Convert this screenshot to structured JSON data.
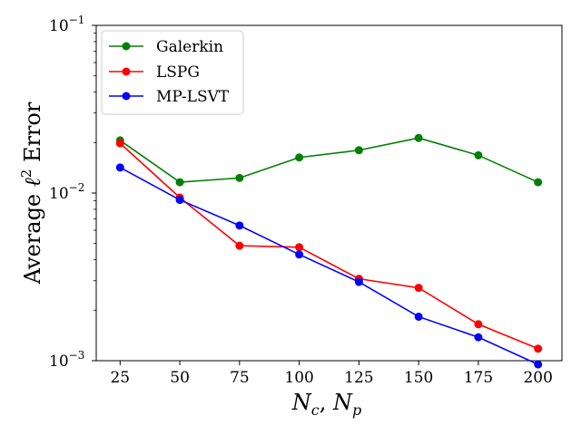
{
  "chart_data": {
    "type": "line",
    "title": "",
    "xlabel": "N_c, N_p",
    "xlabel_parts": {
      "n": "N",
      "c": "c",
      "sep": ", ",
      "p": "p"
    },
    "ylabel": "Average ℓ² Error",
    "ylabel_parts": {
      "prefix": "Average ",
      "ell": "ℓ",
      "sup": "2",
      "suffix": " Error"
    },
    "yscale": "log",
    "ylim": [
      0.001,
      0.1
    ],
    "xlim": [
      15,
      210
    ],
    "x": [
      25,
      50,
      75,
      100,
      125,
      150,
      175,
      200
    ],
    "x_tick_labels": [
      "25",
      "50",
      "75",
      "100",
      "125",
      "150",
      "175",
      "200"
    ],
    "y_tick_labels": [
      {
        "value": 0.001,
        "base": "10",
        "exp": "−3"
      },
      {
        "value": 0.01,
        "base": "10",
        "exp": "−2"
      },
      {
        "value": 0.1,
        "base": "10",
        "exp": "−1"
      }
    ],
    "legend_position": "top-left",
    "series": [
      {
        "name": "Galerkin",
        "color": "#008000",
        "values": [
          0.0206,
          0.0116,
          0.0123,
          0.0163,
          0.018,
          0.0213,
          0.0168,
          0.0116
        ]
      },
      {
        "name": "LSPG",
        "color": "#ff0000",
        "values": [
          0.0198,
          0.0094,
          0.00485,
          0.00475,
          0.00308,
          0.00272,
          0.00165,
          0.00118
        ]
      },
      {
        "name": "MP-LSVT",
        "color": "#0000ff",
        "values": [
          0.0142,
          0.0091,
          0.0064,
          0.0043,
          0.00295,
          0.00183,
          0.00138,
          0.00095
        ]
      }
    ]
  }
}
